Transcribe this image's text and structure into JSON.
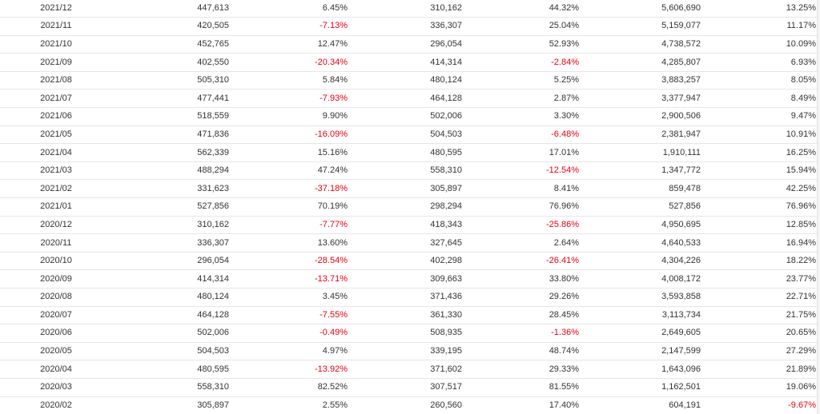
{
  "table": {
    "rows": [
      {
        "period": "2021/12",
        "v1": "447,613",
        "p1": "6.45%",
        "v2": "310,162",
        "p2": "44.32%",
        "v3": "5,606,690",
        "p3": "13.25%"
      },
      {
        "period": "2021/11",
        "v1": "420,505",
        "p1": "-7.13%",
        "v2": "336,307",
        "p2": "25.04%",
        "v3": "5,159,077",
        "p3": "11.17%"
      },
      {
        "period": "2021/10",
        "v1": "452,765",
        "p1": "12.47%",
        "v2": "296,054",
        "p2": "52.93%",
        "v3": "4,738,572",
        "p3": "10.09%"
      },
      {
        "period": "2021/09",
        "v1": "402,550",
        "p1": "-20.34%",
        "v2": "414,314",
        "p2": "-2.84%",
        "v3": "4,285,807",
        "p3": "6.93%"
      },
      {
        "period": "2021/08",
        "v1": "505,310",
        "p1": "5.84%",
        "v2": "480,124",
        "p2": "5.25%",
        "v3": "3,883,257",
        "p3": "8.05%"
      },
      {
        "period": "2021/07",
        "v1": "477,441",
        "p1": "-7.93%",
        "v2": "464,128",
        "p2": "2.87%",
        "v3": "3,377,947",
        "p3": "8.49%"
      },
      {
        "period": "2021/06",
        "v1": "518,559",
        "p1": "9.90%",
        "v2": "502,006",
        "p2": "3.30%",
        "v3": "2,900,506",
        "p3": "9.47%"
      },
      {
        "period": "2021/05",
        "v1": "471,836",
        "p1": "-16.09%",
        "v2": "504,503",
        "p2": "-6.48%",
        "v3": "2,381,947",
        "p3": "10.91%"
      },
      {
        "period": "2021/04",
        "v1": "562,339",
        "p1": "15.16%",
        "v2": "480,595",
        "p2": "17.01%",
        "v3": "1,910,111",
        "p3": "16.25%"
      },
      {
        "period": "2021/03",
        "v1": "488,294",
        "p1": "47.24%",
        "v2": "558,310",
        "p2": "-12.54%",
        "v3": "1,347,772",
        "p3": "15.94%"
      },
      {
        "period": "2021/02",
        "v1": "331,623",
        "p1": "-37.18%",
        "v2": "305,897",
        "p2": "8.41%",
        "v3": "859,478",
        "p3": "42.25%"
      },
      {
        "period": "2021/01",
        "v1": "527,856",
        "p1": "70.19%",
        "v2": "298,294",
        "p2": "76.96%",
        "v3": "527,856",
        "p3": "76.96%"
      },
      {
        "period": "2020/12",
        "v1": "310,162",
        "p1": "-7.77%",
        "v2": "418,343",
        "p2": "-25.86%",
        "v3": "4,950,695",
        "p3": "12.85%"
      },
      {
        "period": "2020/11",
        "v1": "336,307",
        "p1": "13.60%",
        "v2": "327,645",
        "p2": "2.64%",
        "v3": "4,640,533",
        "p3": "16.94%"
      },
      {
        "period": "2020/10",
        "v1": "296,054",
        "p1": "-28.54%",
        "v2": "402,298",
        "p2": "-26.41%",
        "v3": "4,304,226",
        "p3": "18.22%"
      },
      {
        "period": "2020/09",
        "v1": "414,314",
        "p1": "-13.71%",
        "v2": "309,663",
        "p2": "33.80%",
        "v3": "4,008,172",
        "p3": "23.77%"
      },
      {
        "period": "2020/08",
        "v1": "480,124",
        "p1": "3.45%",
        "v2": "371,436",
        "p2": "29.26%",
        "v3": "3,593,858",
        "p3": "22.71%"
      },
      {
        "period": "2020/07",
        "v1": "464,128",
        "p1": "-7.55%",
        "v2": "361,330",
        "p2": "28.45%",
        "v3": "3,113,734",
        "p3": "21.75%"
      },
      {
        "period": "2020/06",
        "v1": "502,006",
        "p1": "-0.49%",
        "v2": "508,935",
        "p2": "-1.36%",
        "v3": "2,649,605",
        "p3": "20.65%"
      },
      {
        "period": "2020/05",
        "v1": "504,503",
        "p1": "4.97%",
        "v2": "339,195",
        "p2": "48.74%",
        "v3": "2,147,599",
        "p3": "27.29%"
      },
      {
        "period": "2020/04",
        "v1": "480,595",
        "p1": "-13.92%",
        "v2": "371,602",
        "p2": "29.33%",
        "v3": "1,643,096",
        "p3": "21.89%"
      },
      {
        "period": "2020/03",
        "v1": "558,310",
        "p1": "82.52%",
        "v2": "307,517",
        "p2": "81.55%",
        "v3": "1,162,501",
        "p3": "19.06%"
      },
      {
        "period": "2020/02",
        "v1": "305,897",
        "p1": "2.55%",
        "v2": "260,560",
        "p2": "17.40%",
        "v3": "604,191",
        "p3": "-9.67%"
      }
    ]
  },
  "colors": {
    "text": "#333333",
    "negative": "#e60012",
    "row_border": "#e6e6e6"
  }
}
